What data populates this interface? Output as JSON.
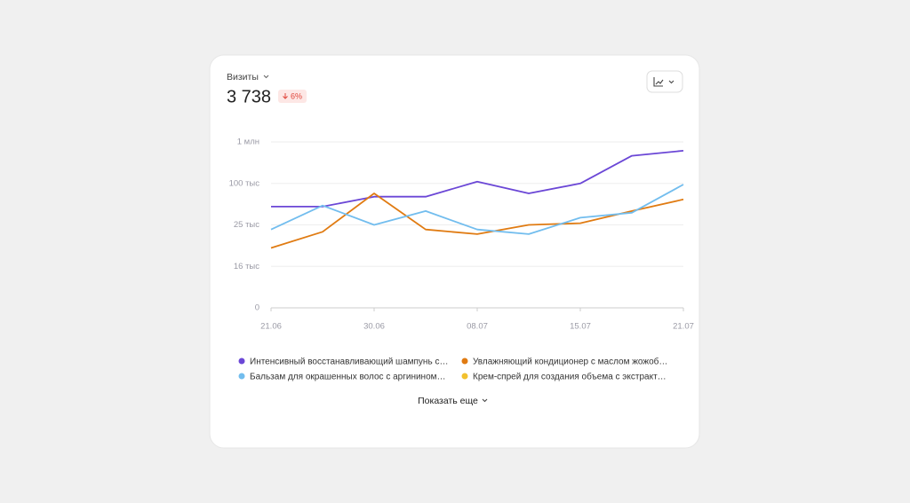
{
  "header": {
    "metric": "Визиты",
    "total": "3 738",
    "change": "6%"
  },
  "chart_data": {
    "type": "line",
    "categories": [
      "21.06",
      null,
      "30.06",
      null,
      "08.07",
      null,
      "15.07",
      null,
      "21.07"
    ],
    "ylim": [
      0,
      1000000
    ],
    "yticks": [
      0,
      {
        "value": 16000,
        "label": "16 тыс"
      },
      {
        "value": 25000,
        "label": "25 тыс"
      },
      {
        "value": 100000,
        "label": "100 тыс"
      },
      {
        "value": 1000000,
        "label": "1 млн"
      }
    ],
    "grid": true,
    "series": [
      {
        "name": "Интенсивный восстанавливающий шампунь с…",
        "color": "#6b47d6",
        "values": [
          58000,
          58000,
          76000,
          76000,
          138000,
          82000,
          100000,
          700000,
          810000
        ]
      },
      {
        "name": "Увлажняющий кондиционер с маслом жожоб…",
        "color": "#e07b12",
        "values": [
          20000,
          23500,
          82000,
          24000,
          23000,
          25000,
          28000,
          50000,
          71000
        ]
      },
      {
        "name": "Бальзам для окрашенных волос с аргинином…",
        "color": "#72bdee",
        "values": [
          24000,
          60000,
          25000,
          50000,
          24000,
          23000,
          38000,
          47000,
          98000
        ]
      },
      {
        "name": "Крем-спрей для создания объема с экстракт…",
        "color": "#f2c12e",
        "values": [
          null,
          null,
          null,
          null,
          null,
          null,
          null,
          null,
          null
        ]
      }
    ]
  },
  "footer": {
    "more": "Показать еще"
  }
}
